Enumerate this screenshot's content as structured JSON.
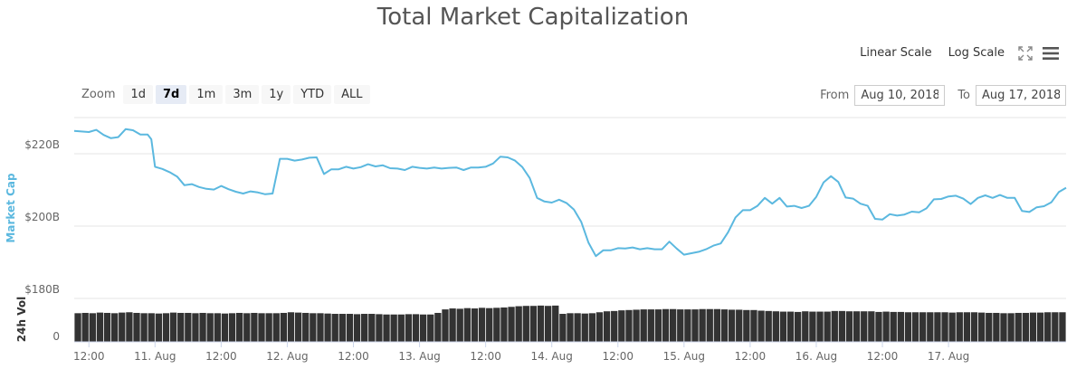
{
  "title": "Total Market Capitalization",
  "scale_buttons": [
    {
      "label": "Linear Scale",
      "active": true
    },
    {
      "label": "Log Scale",
      "active": false
    }
  ],
  "icons": {
    "fullscreen": "fullscreen-icon",
    "menu": "hamburger-menu-icon"
  },
  "zoom": {
    "label": "Zoom",
    "options": [
      {
        "label": "1d",
        "active": false
      },
      {
        "label": "7d",
        "active": true
      },
      {
        "label": "1m",
        "active": false
      },
      {
        "label": "3m",
        "active": false
      },
      {
        "label": "1y",
        "active": false
      },
      {
        "label": "YTD",
        "active": false
      },
      {
        "label": "ALL",
        "active": false
      }
    ]
  },
  "range": {
    "from_label": "From",
    "from_value": "Aug 10, 2018",
    "to_label": "To",
    "to_value": "Aug 17, 2018"
  },
  "colors": {
    "line": "#5bb8df",
    "volume": "#333333",
    "axis_title": "#5bb8df",
    "grid": "#e6e6e6"
  },
  "chart_data": {
    "type": "line",
    "series": [
      {
        "name": "Market Cap",
        "unit": "billions USD",
        "points": [
          [
            0,
            226.3
          ],
          [
            2,
            226.0
          ],
          [
            3,
            226.6
          ],
          [
            4,
            225.2
          ],
          [
            5,
            224.3
          ],
          [
            6,
            224.6
          ],
          [
            7,
            226.8
          ],
          [
            8,
            226.5
          ],
          [
            9,
            225.3
          ],
          [
            10,
            225.3
          ],
          [
            10.5,
            224.0
          ],
          [
            11,
            216.4
          ],
          [
            12,
            215.8
          ],
          [
            13,
            214.9
          ],
          [
            14,
            213.7
          ],
          [
            15,
            211.3
          ],
          [
            16,
            211.6
          ],
          [
            17,
            210.8
          ],
          [
            18,
            210.3
          ],
          [
            19,
            210.1
          ],
          [
            20,
            211.1
          ],
          [
            21,
            210.2
          ],
          [
            22,
            209.5
          ],
          [
            23,
            209.0
          ],
          [
            24,
            209.6
          ],
          [
            25,
            209.3
          ],
          [
            26,
            208.8
          ],
          [
            27,
            209.0
          ],
          [
            28,
            218.6
          ],
          [
            29,
            218.6
          ],
          [
            30,
            218.1
          ],
          [
            31,
            218.4
          ],
          [
            32,
            218.9
          ],
          [
            33,
            219.0
          ],
          [
            34,
            214.4
          ],
          [
            35,
            215.7
          ],
          [
            36,
            215.7
          ],
          [
            37,
            216.4
          ],
          [
            38,
            215.9
          ],
          [
            39,
            216.3
          ],
          [
            40,
            217.1
          ],
          [
            41,
            216.5
          ],
          [
            42,
            216.8
          ],
          [
            43,
            216.0
          ],
          [
            44,
            215.9
          ],
          [
            45,
            215.5
          ],
          [
            46,
            216.4
          ],
          [
            47,
            216.1
          ],
          [
            48,
            215.9
          ],
          [
            49,
            216.2
          ],
          [
            50,
            215.9
          ],
          [
            51,
            216.1
          ],
          [
            52,
            216.2
          ],
          [
            53,
            215.5
          ],
          [
            54,
            216.2
          ],
          [
            55,
            216.2
          ],
          [
            56,
            216.4
          ],
          [
            57,
            217.3
          ],
          [
            58,
            219.2
          ],
          [
            59,
            219.0
          ],
          [
            60,
            218.1
          ],
          [
            61,
            216.3
          ],
          [
            62,
            213.3
          ],
          [
            63,
            207.8
          ],
          [
            64,
            206.8
          ],
          [
            65,
            206.5
          ],
          [
            66,
            207.3
          ],
          [
            67,
            206.4
          ],
          [
            68,
            204.6
          ],
          [
            69,
            201.2
          ],
          [
            70,
            195.4
          ],
          [
            71,
            191.7
          ],
          [
            72,
            193.3
          ],
          [
            73,
            193.3
          ],
          [
            74,
            193.9
          ],
          [
            75,
            193.8
          ],
          [
            76,
            194.1
          ],
          [
            77,
            193.6
          ],
          [
            78,
            193.9
          ],
          [
            79,
            193.6
          ],
          [
            80,
            193.6
          ],
          [
            81,
            195.7
          ],
          [
            82,
            193.8
          ],
          [
            83,
            192.1
          ],
          [
            84,
            192.5
          ],
          [
            85,
            192.9
          ],
          [
            86,
            193.6
          ],
          [
            87,
            194.6
          ],
          [
            88,
            195.2
          ],
          [
            89,
            198.3
          ],
          [
            90,
            202.4
          ],
          [
            91,
            204.4
          ],
          [
            92,
            204.4
          ],
          [
            93,
            205.6
          ],
          [
            94,
            207.8
          ],
          [
            95,
            206.2
          ],
          [
            96,
            207.8
          ],
          [
            97,
            205.4
          ],
          [
            98,
            205.6
          ],
          [
            99,
            205.0
          ],
          [
            100,
            205.6
          ],
          [
            101,
            208.1
          ],
          [
            102,
            212.1
          ],
          [
            103,
            213.8
          ],
          [
            104,
            212.2
          ],
          [
            105,
            207.9
          ],
          [
            106,
            207.6
          ],
          [
            107,
            206.2
          ],
          [
            108,
            205.6
          ],
          [
            109,
            202.0
          ],
          [
            110,
            201.8
          ],
          [
            111,
            203.3
          ],
          [
            112,
            202.9
          ],
          [
            113,
            203.2
          ],
          [
            114,
            204.0
          ],
          [
            115,
            203.8
          ],
          [
            116,
            204.9
          ],
          [
            117,
            207.4
          ],
          [
            118,
            207.5
          ],
          [
            119,
            208.2
          ],
          [
            120,
            208.4
          ],
          [
            121,
            207.6
          ],
          [
            122,
            206.1
          ],
          [
            123,
            207.8
          ],
          [
            124,
            208.5
          ],
          [
            125,
            207.8
          ],
          [
            126,
            208.6
          ],
          [
            127,
            207.8
          ],
          [
            128,
            207.8
          ],
          [
            129,
            204.2
          ],
          [
            130,
            203.9
          ],
          [
            131,
            205.2
          ],
          [
            132,
            205.5
          ],
          [
            133,
            206.6
          ],
          [
            134,
            209.4
          ],
          [
            135,
            210.6
          ]
        ]
      },
      {
        "name": "24h Vol",
        "type": "bar",
        "values": [
          0.9,
          0.91,
          0.9,
          0.92,
          0.91,
          0.9,
          0.92,
          0.93,
          0.91,
          0.9,
          0.9,
          0.89,
          0.9,
          0.92,
          0.91,
          0.91,
          0.9,
          0.91,
          0.9,
          0.9,
          0.89,
          0.9,
          0.91,
          0.9,
          0.91,
          0.9,
          0.9,
          0.9,
          0.91,
          0.93,
          0.92,
          0.91,
          0.9,
          0.9,
          0.89,
          0.88,
          0.88,
          0.88,
          0.87,
          0.88,
          0.88,
          0.87,
          0.86,
          0.86,
          0.86,
          0.87,
          0.87,
          0.86,
          0.86,
          0.91,
          1.02,
          1.05,
          1.04,
          1.06,
          1.05,
          1.07,
          1.06,
          1.07,
          1.08,
          1.1,
          1.12,
          1.13,
          1.13,
          1.14,
          1.13,
          1.14,
          0.88,
          0.9,
          0.9,
          0.89,
          0.9,
          0.93,
          0.96,
          0.97,
          0.99,
          1.0,
          1.01,
          1.02,
          1.02,
          1.02,
          1.03,
          1.03,
          1.02,
          1.02,
          1.02,
          1.03,
          1.03,
          1.03,
          1.02,
          1.01,
          1.01,
          1.0,
          1.0,
          0.98,
          0.97,
          0.96,
          0.95,
          0.95,
          0.94,
          0.96,
          0.95,
          0.95,
          0.95,
          0.97,
          0.97,
          0.96,
          0.96,
          0.96,
          0.96,
          0.94,
          0.95,
          0.94,
          0.94,
          0.93,
          0.93,
          0.93,
          0.93,
          0.93,
          0.93,
          0.92,
          0.93,
          0.93,
          0.93,
          0.92,
          0.91,
          0.91,
          0.9,
          0.9,
          0.91,
          0.91,
          0.92,
          0.92,
          0.93,
          0.93,
          0.93
        ]
      }
    ],
    "x_ticks": [
      "12:00",
      "11. Aug",
      "12:00",
      "12. Aug",
      "12:00",
      "13. Aug",
      "12:00",
      "14. Aug",
      "12:00",
      "15. Aug",
      "12:00",
      "16. Aug",
      "12:00",
      "17. Aug"
    ],
    "x_tick_positions": [
      2,
      11,
      20,
      29,
      38,
      47,
      56,
      65,
      74,
      83,
      92,
      101,
      110,
      119
    ],
    "x_range": [
      0,
      135
    ],
    "y_ticks": [
      "$220B",
      "$200B",
      "$180B"
    ],
    "y_tick_values": [
      220,
      200,
      180
    ],
    "ylabel": "Market Cap",
    "ylim": [
      180,
      230
    ],
    "volume_ylabel": "24h Vol",
    "volume_y_ticks": [
      "0"
    ],
    "grid": true
  }
}
